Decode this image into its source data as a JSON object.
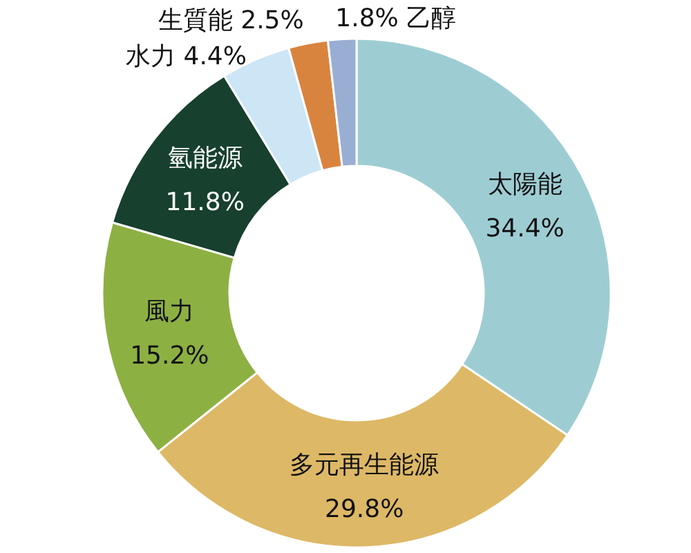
{
  "chart_data": {
    "type": "donut",
    "categories": [
      "太陽能",
      "多元再生能源",
      "風力",
      "氫能源",
      "水力",
      "生質能",
      "乙醇"
    ],
    "values": [
      34.4,
      29.8,
      15.2,
      11.8,
      4.4,
      2.5,
      1.8
    ],
    "value_labels": [
      "34.4%",
      "29.8%",
      "15.2%",
      "11.8%",
      "4.4%",
      "2.5%",
      "1.8%"
    ],
    "colors": [
      "#9dcdd3",
      "#ddb866",
      "#8db043",
      "#17402e",
      "#cce6f5",
      "#d9843e",
      "#99aed3"
    ]
  }
}
